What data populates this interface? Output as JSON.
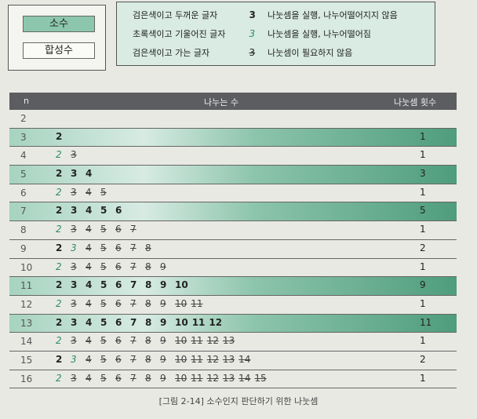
{
  "legend_chips": {
    "prime": "소수",
    "composite": "합성수"
  },
  "legend": [
    {
      "desc": "검은색이고 두꺼운 글자",
      "mark": "3",
      "meaning": "나눗셈을 실행, 나누어떨어지지 않음",
      "style": "tried"
    },
    {
      "desc": "초록색이고 기울어진 글자",
      "mark": "3",
      "meaning": "나눗셈을 실행, 나누어떨어짐",
      "style": "green"
    },
    {
      "desc": "검은색이고 가는 글자",
      "mark": "3",
      "meaning": "나눗셈이 필요하지 않음",
      "style": "strike"
    }
  ],
  "table": {
    "headers": {
      "n": "n",
      "divisors": "나누는 수",
      "count": "나눗셈 횟수"
    },
    "rows": [
      {
        "n": "2",
        "prime": false,
        "divs": [],
        "count": ""
      },
      {
        "n": "3",
        "prime": true,
        "divs": [
          [
            "2",
            "tried"
          ]
        ],
        "count": "1"
      },
      {
        "n": "4",
        "prime": false,
        "divs": [
          [
            "2",
            "miss"
          ],
          [
            "3",
            "skip"
          ]
        ],
        "count": "1"
      },
      {
        "n": "5",
        "prime": true,
        "divs": [
          [
            "2",
            "tried"
          ],
          [
            "3",
            "tried"
          ],
          [
            "4",
            "tried"
          ]
        ],
        "count": "3"
      },
      {
        "n": "6",
        "prime": false,
        "divs": [
          [
            "2",
            "miss"
          ],
          [
            "3",
            "skip"
          ],
          [
            "4",
            "skip"
          ],
          [
            "5",
            "skip"
          ]
        ],
        "count": "1"
      },
      {
        "n": "7",
        "prime": true,
        "divs": [
          [
            "2",
            "tried"
          ],
          [
            "3",
            "tried"
          ],
          [
            "4",
            "tried"
          ],
          [
            "5",
            "tried"
          ],
          [
            "6",
            "tried"
          ]
        ],
        "count": "5"
      },
      {
        "n": "8",
        "prime": false,
        "divs": [
          [
            "2",
            "miss"
          ],
          [
            "3",
            "skip"
          ],
          [
            "4",
            "skip"
          ],
          [
            "5",
            "skip"
          ],
          [
            "6",
            "skip"
          ],
          [
            "7",
            "skip"
          ]
        ],
        "count": "1"
      },
      {
        "n": "9",
        "prime": false,
        "divs": [
          [
            "2",
            "tried"
          ],
          [
            "3",
            "miss"
          ],
          [
            "4",
            "skip"
          ],
          [
            "5",
            "skip"
          ],
          [
            "6",
            "skip"
          ],
          [
            "7",
            "skip"
          ],
          [
            "8",
            "skip"
          ]
        ],
        "count": "2"
      },
      {
        "n": "10",
        "prime": false,
        "divs": [
          [
            "2",
            "miss"
          ],
          [
            "3",
            "skip"
          ],
          [
            "4",
            "skip"
          ],
          [
            "5",
            "skip"
          ],
          [
            "6",
            "skip"
          ],
          [
            "7",
            "skip"
          ],
          [
            "8",
            "skip"
          ],
          [
            "9",
            "skip"
          ]
        ],
        "count": "1"
      },
      {
        "n": "11",
        "prime": true,
        "divs": [
          [
            "2",
            "tried"
          ],
          [
            "3",
            "tried"
          ],
          [
            "4",
            "tried"
          ],
          [
            "5",
            "tried"
          ],
          [
            "6",
            "tried"
          ],
          [
            "7",
            "tried"
          ],
          [
            "8",
            "tried"
          ],
          [
            "9",
            "tried"
          ],
          [
            "10",
            "tried"
          ]
        ],
        "count": "9"
      },
      {
        "n": "12",
        "prime": false,
        "divs": [
          [
            "2",
            "miss"
          ],
          [
            "3",
            "skip"
          ],
          [
            "4",
            "skip"
          ],
          [
            "5",
            "skip"
          ],
          [
            "6",
            "skip"
          ],
          [
            "7",
            "skip"
          ],
          [
            "8",
            "skip"
          ],
          [
            "9",
            "skip"
          ],
          [
            "10",
            "skip"
          ],
          [
            "11",
            "skip"
          ]
        ],
        "count": "1"
      },
      {
        "n": "13",
        "prime": true,
        "divs": [
          [
            "2",
            "tried"
          ],
          [
            "3",
            "tried"
          ],
          [
            "4",
            "tried"
          ],
          [
            "5",
            "tried"
          ],
          [
            "6",
            "tried"
          ],
          [
            "7",
            "tried"
          ],
          [
            "8",
            "tried"
          ],
          [
            "9",
            "tried"
          ],
          [
            "10",
            "tried"
          ],
          [
            "11",
            "tried"
          ],
          [
            "12",
            "tried"
          ]
        ],
        "count": "11"
      },
      {
        "n": "14",
        "prime": false,
        "divs": [
          [
            "2",
            "miss"
          ],
          [
            "3",
            "skip"
          ],
          [
            "4",
            "skip"
          ],
          [
            "5",
            "skip"
          ],
          [
            "6",
            "skip"
          ],
          [
            "7",
            "skip"
          ],
          [
            "8",
            "skip"
          ],
          [
            "9",
            "skip"
          ],
          [
            "10",
            "skip"
          ],
          [
            "11",
            "skip"
          ],
          [
            "12",
            "skip"
          ],
          [
            "13",
            "skip"
          ]
        ],
        "count": "1"
      },
      {
        "n": "15",
        "prime": false,
        "divs": [
          [
            "2",
            "tried"
          ],
          [
            "3",
            "miss"
          ],
          [
            "4",
            "skip"
          ],
          [
            "5",
            "skip"
          ],
          [
            "6",
            "skip"
          ],
          [
            "7",
            "skip"
          ],
          [
            "8",
            "skip"
          ],
          [
            "9",
            "skip"
          ],
          [
            "10",
            "skip"
          ],
          [
            "11",
            "skip"
          ],
          [
            "12",
            "skip"
          ],
          [
            "13",
            "skip"
          ],
          [
            "14",
            "skip"
          ]
        ],
        "count": "2"
      },
      {
        "n": "16",
        "prime": false,
        "divs": [
          [
            "2",
            "miss"
          ],
          [
            "3",
            "skip"
          ],
          [
            "4",
            "skip"
          ],
          [
            "5",
            "skip"
          ],
          [
            "6",
            "skip"
          ],
          [
            "7",
            "skip"
          ],
          [
            "8",
            "skip"
          ],
          [
            "9",
            "skip"
          ],
          [
            "10",
            "skip"
          ],
          [
            "11",
            "skip"
          ],
          [
            "12",
            "skip"
          ],
          [
            "13",
            "skip"
          ],
          [
            "14",
            "skip"
          ],
          [
            "15",
            "skip"
          ]
        ],
        "count": "1"
      }
    ]
  },
  "caption": "[그림 2-14] 소수인지 판단하기 위한 나눗셈"
}
